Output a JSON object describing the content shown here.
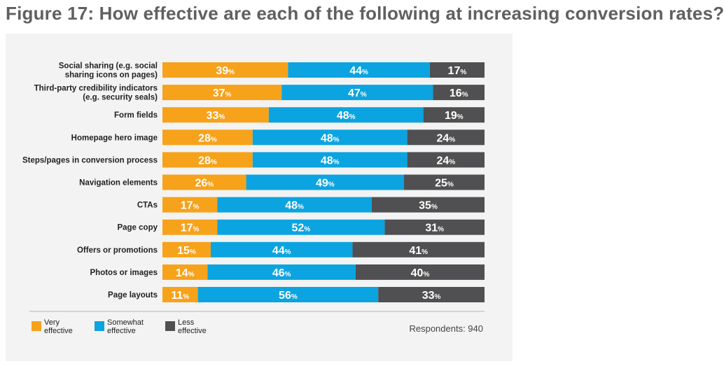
{
  "title": "Figure 17: How effective are each of the following at increasing conversion rates?",
  "footnote": "Respondents: 940",
  "colors": {
    "very": "#f7a21b",
    "somewhat": "#0ba4e0",
    "less": "#505052",
    "panel": "#f3f3f3"
  },
  "chart_data": {
    "type": "bar",
    "orientation": "horizontal",
    "stacked": true,
    "percent_symbol": "%",
    "categories": [
      [
        "Social sharing (e.g. social",
        "sharing icons on pages)"
      ],
      [
        "Third-party credibility indicators",
        "(e.g. security seals)"
      ],
      [
        "Form fields"
      ],
      [
        "Homepage hero image"
      ],
      [
        "Steps/pages in conversion process"
      ],
      [
        "Navigation elements"
      ],
      [
        "CTAs"
      ],
      [
        "Page copy"
      ],
      [
        "Offers or promotions"
      ],
      [
        "Photos or images"
      ],
      [
        "Page layouts"
      ]
    ],
    "series": [
      {
        "name": [
          "Very",
          "effective"
        ],
        "color": "#f7a21b",
        "values": [
          39,
          37,
          33,
          28,
          28,
          26,
          17,
          17,
          15,
          14,
          11
        ]
      },
      {
        "name": [
          "Somewhat",
          "effective"
        ],
        "color": "#0ba4e0",
        "values": [
          44,
          47,
          48,
          48,
          48,
          49,
          48,
          52,
          44,
          46,
          56
        ]
      },
      {
        "name": [
          "Less",
          "effective"
        ],
        "color": "#505052",
        "values": [
          17,
          16,
          19,
          24,
          24,
          25,
          35,
          31,
          41,
          40,
          33
        ]
      }
    ],
    "xlim": [
      0,
      100
    ],
    "legend": "bottom-left"
  }
}
